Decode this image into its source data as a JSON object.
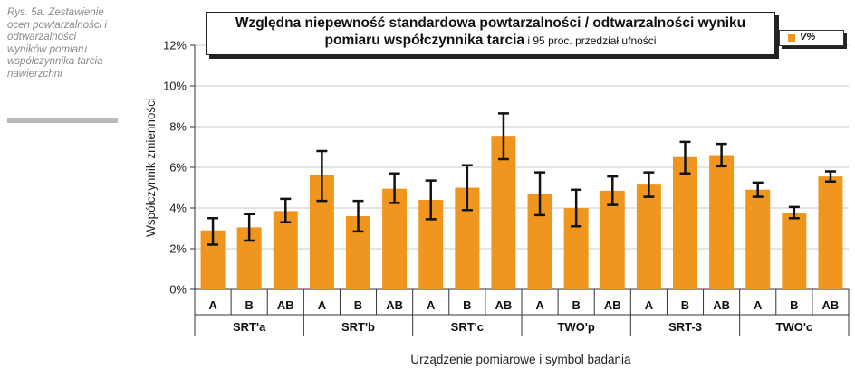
{
  "caption": "Rys. 5a. Zestawienie ocen powtarzalności i odtwarzalności wyników pomiaru współczynnika tarcia nawierzchni",
  "colors": {
    "bar": "#f0961e",
    "error": "#111111",
    "grid": "#c8c8c8"
  },
  "chart_data": {
    "type": "bar",
    "title_bold": "Względna niepewność standardowa powtarzalności / odtwarzalności wyniku",
    "title_line2_bold": "pomiaru współczynnika tarcia",
    "title_line2_rest": " i 95 proc. przedział ufności",
    "legend_label": "V%",
    "ylabel": "Współczynnik zmienności",
    "xlabel": "Urządzenie pomiarowe i symbol badania",
    "ylim": [
      0,
      12
    ],
    "yticks": [
      0,
      2,
      4,
      6,
      8,
      10,
      12
    ],
    "ytick_labels": [
      "0%",
      "2%",
      "4%",
      "6%",
      "8%",
      "10%",
      "12%"
    ],
    "groups": [
      {
        "name": "SRT'a",
        "bars": [
          {
            "label": "A",
            "value": 2.9,
            "err_low": 2.2,
            "err_high": 3.5
          },
          {
            "label": "B",
            "value": 3.05,
            "err_low": 2.4,
            "err_high": 3.7
          },
          {
            "label": "AB",
            "value": 3.85,
            "err_low": 3.3,
            "err_high": 4.45
          }
        ]
      },
      {
        "name": "SRT'b",
        "bars": [
          {
            "label": "A",
            "value": 5.6,
            "err_low": 4.35,
            "err_high": 6.8
          },
          {
            "label": "B",
            "value": 3.6,
            "err_low": 2.85,
            "err_high": 4.35
          },
          {
            "label": "AB",
            "value": 4.95,
            "err_low": 4.25,
            "err_high": 5.7
          }
        ]
      },
      {
        "name": "SRT'c",
        "bars": [
          {
            "label": "A",
            "value": 4.4,
            "err_low": 3.45,
            "err_high": 5.35
          },
          {
            "label": "B",
            "value": 5.0,
            "err_low": 3.9,
            "err_high": 6.1
          },
          {
            "label": "AB",
            "value": 7.55,
            "err_low": 6.4,
            "err_high": 8.65
          }
        ]
      },
      {
        "name": "TWO'p",
        "bars": [
          {
            "label": "A",
            "value": 4.7,
            "err_low": 3.65,
            "err_high": 5.75
          },
          {
            "label": "B",
            "value": 4.0,
            "err_low": 3.1,
            "err_high": 4.9
          },
          {
            "label": "AB",
            "value": 4.85,
            "err_low": 4.15,
            "err_high": 5.55
          }
        ]
      },
      {
        "name": "SRT-3",
        "bars": [
          {
            "label": "A",
            "value": 5.15,
            "err_low": 4.55,
            "err_high": 5.75
          },
          {
            "label": "B",
            "value": 6.5,
            "err_low": 5.7,
            "err_high": 7.25
          },
          {
            "label": "AB",
            "value": 6.6,
            "err_low": 6.05,
            "err_high": 7.15
          }
        ]
      },
      {
        "name": "TWO'c",
        "bars": [
          {
            "label": "A",
            "value": 4.9,
            "err_low": 4.55,
            "err_high": 5.25
          },
          {
            "label": "B",
            "value": 3.75,
            "err_low": 3.5,
            "err_high": 4.05
          },
          {
            "label": "AB",
            "value": 5.55,
            "err_low": 5.3,
            "err_high": 5.8
          }
        ]
      }
    ]
  }
}
